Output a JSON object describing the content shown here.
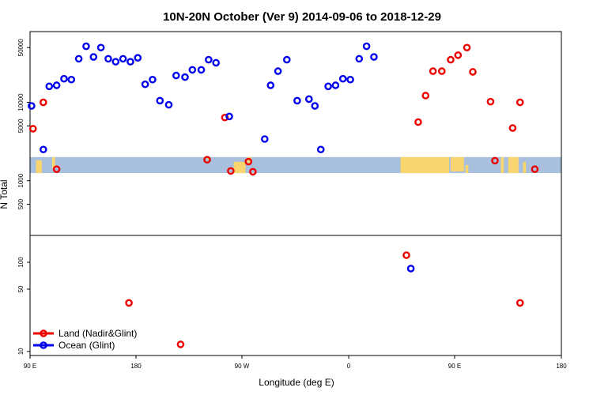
{
  "chart_data": {
    "type": "scatter",
    "title": "10N-20N October (Ver 9)   2014-09-06 to 2018-12-29",
    "xlabel": "Longitude (deg E)",
    "ylabel": "N Total",
    "x_tick_labels": [
      "90 E",
      "180",
      "90 W",
      "0",
      "90 E",
      "180"
    ],
    "x_range_label": [
      "90 E",
      "180"
    ],
    "top_panel": {
      "yscale": "log",
      "ylim": [
        200,
        80000
      ],
      "y_tick_labels": [
        "500",
        "1000",
        "5000",
        "10000",
        "50000"
      ],
      "band_range": [
        1250,
        2000
      ],
      "band_colors": {
        "ocean": "#a8bfdd",
        "land": "#f8d56e"
      }
    },
    "bottom_panel": {
      "yscale": "log",
      "ylim": [
        9,
        200
      ],
      "y_tick_labels": [
        "10",
        "50",
        "100"
      ]
    },
    "colors": {
      "land": "#ee0000",
      "ocean": "#0000ee"
    },
    "series": [
      {
        "name": "Land (Nadir&Glint)",
        "color": "#ee0000",
        "points": [
          {
            "x": 92,
            "y": 4600
          },
          {
            "x": 99,
            "y": 10000
          },
          {
            "x": 108,
            "y": 1400
          },
          {
            "x": 210,
            "y": 1850
          },
          {
            "x": 222,
            "y": 6400
          },
          {
            "x": 226,
            "y": 1330
          },
          {
            "x": 238,
            "y": 1750
          },
          {
            "x": 241,
            "y": 1300
          },
          {
            "x": 353,
            "y": 5600
          },
          {
            "x": 358,
            "y": 12200
          },
          {
            "x": 363,
            "y": 25000
          },
          {
            "x": 369,
            "y": 25000
          },
          {
            "x": 375,
            "y": 35000
          },
          {
            "x": 380,
            "y": 40000
          },
          {
            "x": 386,
            "y": 50000
          },
          {
            "x": 390,
            "y": 24500
          },
          {
            "x": 402,
            "y": 10200
          },
          {
            "x": 405,
            "y": 1800
          },
          {
            "x": 417,
            "y": 4700
          },
          {
            "x": 422,
            "y": 10000
          },
          {
            "x": 432,
            "y": 1400
          },
          {
            "x": 157,
            "y": 35
          },
          {
            "x": 192,
            "y": 12
          },
          {
            "x": 345,
            "y": 120
          },
          {
            "x": 422,
            "y": 35
          }
        ]
      },
      {
        "name": "Ocean (Glint)",
        "color": "#0000ee",
        "points": [
          {
            "x": 91,
            "y": 9000
          },
          {
            "x": 99,
            "y": 2500
          },
          {
            "x": 103,
            "y": 16000
          },
          {
            "x": 108,
            "y": 16500
          },
          {
            "x": 113,
            "y": 20000
          },
          {
            "x": 118,
            "y": 19500
          },
          {
            "x": 123,
            "y": 36000
          },
          {
            "x": 128,
            "y": 52000
          },
          {
            "x": 133,
            "y": 38000
          },
          {
            "x": 138,
            "y": 50000
          },
          {
            "x": 143,
            "y": 36000
          },
          {
            "x": 148,
            "y": 33000
          },
          {
            "x": 153,
            "y": 36000
          },
          {
            "x": 158,
            "y": 33000
          },
          {
            "x": 163,
            "y": 37000
          },
          {
            "x": 168,
            "y": 17000
          },
          {
            "x": 173,
            "y": 19500
          },
          {
            "x": 178,
            "y": 10500
          },
          {
            "x": 184,
            "y": 9300
          },
          {
            "x": 189,
            "y": 22000
          },
          {
            "x": 195,
            "y": 21000
          },
          {
            "x": 200,
            "y": 26000
          },
          {
            "x": 206,
            "y": 26000
          },
          {
            "x": 211,
            "y": 35000
          },
          {
            "x": 216,
            "y": 32000
          },
          {
            "x": 225,
            "y": 6600
          },
          {
            "x": 249,
            "y": 3400
          },
          {
            "x": 253,
            "y": 16500
          },
          {
            "x": 258,
            "y": 25000
          },
          {
            "x": 264,
            "y": 35000
          },
          {
            "x": 271,
            "y": 10500
          },
          {
            "x": 279,
            "y": 11000
          },
          {
            "x": 283,
            "y": 9000
          },
          {
            "x": 287,
            "y": 2500
          },
          {
            "x": 292,
            "y": 16000
          },
          {
            "x": 297,
            "y": 16500
          },
          {
            "x": 302,
            "y": 20000
          },
          {
            "x": 307,
            "y": 19500
          },
          {
            "x": 313,
            "y": 36000
          },
          {
            "x": 318,
            "y": 52000
          },
          {
            "x": 323,
            "y": 38000
          },
          {
            "x": 348,
            "y": 85
          }
        ]
      }
    ],
    "legend": {
      "position": "bottom-left",
      "entries": [
        {
          "label": "Land (Nadir&Glint)",
          "color": "#ee0000"
        },
        {
          "label": "Ocean (Glint)",
          "color": "#0000ee"
        }
      ]
    }
  }
}
